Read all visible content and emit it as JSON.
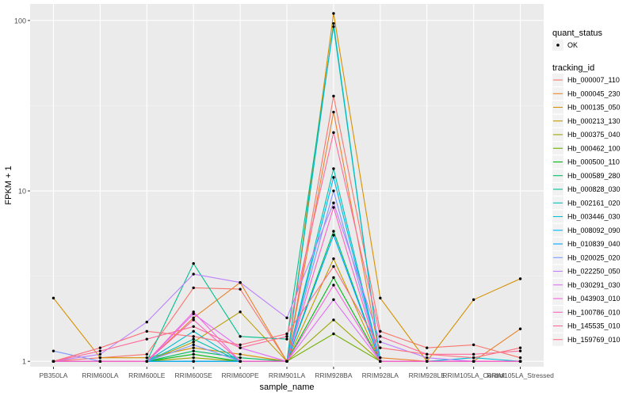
{
  "chart_data": {
    "type": "line",
    "xlabel": "sample_name",
    "ylabel": "FPKM + 1",
    "y_scale": "log10",
    "ylim": [
      0.93,
      125
    ],
    "y_ticks": [
      1,
      10,
      100
    ],
    "y_tick_labels": [
      "1",
      "10",
      "100"
    ],
    "categories": [
      "PB350LA",
      "RRIM600LA",
      "RRIM600LE",
      "RRIM600SE",
      "RRIM600PE",
      "RRIM901LA",
      "RRIM928BA",
      "RRIM928LA",
      "RRIM928LE",
      "RRIM105LA_Control",
      "RRIM105LA_Stressed"
    ],
    "grid": true,
    "background": "#EBEBEB",
    "legend_shape": {
      "title": "quant_status",
      "items": [
        "OK"
      ]
    },
    "legend_color": {
      "title": "tracking_id"
    },
    "series": [
      {
        "name": "Hb_000007_110",
        "color": "#F8766D",
        "values": [
          1.0,
          1.05,
          1.1,
          2.7,
          2.65,
          1.0,
          36,
          1.5,
          1.2,
          1.25,
          1.05
        ]
      },
      {
        "name": "Hb_000045_230",
        "color": "#E9842C",
        "values": [
          1.0,
          1.0,
          1.0,
          1.8,
          2.9,
          1.0,
          29,
          1.05,
          1.0,
          1.0,
          1.55
        ]
      },
      {
        "name": "Hb_000135_050",
        "color": "#D69100",
        "values": [
          2.35,
          1.05,
          1.05,
          1.2,
          1.1,
          1.0,
          110,
          2.35,
          1.0,
          2.3,
          3.05
        ]
      },
      {
        "name": "Hb_000213_130",
        "color": "#BC9D00",
        "values": [
          1.0,
          1.0,
          1.0,
          1.3,
          1.95,
          1.0,
          4.0,
          1.0,
          1.0,
          1.0,
          1.0
        ]
      },
      {
        "name": "Hb_000375_040",
        "color": "#9CA700",
        "values": [
          1.0,
          1.0,
          1.0,
          1.05,
          1.0,
          1.0,
          1.75,
          1.0,
          1.0,
          1.0,
          1.0
        ]
      },
      {
        "name": "Hb_000462_100",
        "color": "#6FB000",
        "values": [
          1.0,
          1.0,
          1.0,
          1.0,
          1.0,
          1.0,
          1.45,
          1.0,
          1.0,
          1.0,
          1.0
        ]
      },
      {
        "name": "Hb_000500_110",
        "color": "#00B813",
        "values": [
          1.0,
          1.0,
          1.0,
          1.1,
          1.0,
          1.0,
          3.1,
          1.0,
          1.0,
          1.0,
          1.0
        ]
      },
      {
        "name": "Hb_000589_280",
        "color": "#00BD61",
        "values": [
          1.0,
          1.0,
          1.0,
          1.15,
          1.05,
          1.0,
          5.8,
          1.0,
          1.0,
          1.0,
          1.0
        ]
      },
      {
        "name": "Hb_000828_030",
        "color": "#00C08E",
        "values": [
          1.0,
          1.0,
          1.0,
          3.75,
          1.4,
          1.35,
          92,
          1.0,
          1.0,
          1.0,
          1.0
        ]
      },
      {
        "name": "Hb_002161_020",
        "color": "#00C0B4",
        "values": [
          1.0,
          1.0,
          1.0,
          1.35,
          1.0,
          1.0,
          13.5,
          1.0,
          1.0,
          1.0,
          1.0
        ]
      },
      {
        "name": "Hb_003446_030",
        "color": "#00BDD4",
        "values": [
          1.0,
          1.0,
          1.0,
          1.5,
          1.0,
          1.0,
          96,
          1.0,
          1.0,
          1.05,
          1.0
        ]
      },
      {
        "name": "Hb_008092_090",
        "color": "#00B5EE",
        "values": [
          1.0,
          1.0,
          1.0,
          1.0,
          1.0,
          1.0,
          12,
          1.0,
          1.0,
          1.0,
          1.0
        ]
      },
      {
        "name": "Hb_010839_040",
        "color": "#00A7FF",
        "values": [
          1.0,
          1.0,
          1.0,
          1.0,
          1.0,
          1.0,
          5.5,
          1.0,
          1.0,
          1.0,
          1.0
        ]
      },
      {
        "name": "Hb_020025_020",
        "color": "#7F96FF",
        "values": [
          1.15,
          1.0,
          1.0,
          1.25,
          1.0,
          1.0,
          10.0,
          1.0,
          1.0,
          1.0,
          1.0
        ]
      },
      {
        "name": "Hb_022250_050",
        "color": "#BC81FF",
        "values": [
          1.0,
          1.1,
          1.7,
          3.25,
          2.9,
          1.8,
          8.5,
          1.3,
          1.05,
          1.0,
          1.0
        ]
      },
      {
        "name": "Hb_030291_030",
        "color": "#E26EF7",
        "values": [
          1.0,
          1.0,
          1.0,
          1.9,
          1.2,
          1.0,
          2.3,
          1.0,
          1.0,
          1.0,
          1.0
        ]
      },
      {
        "name": "Hb_043903_010",
        "color": "#F863DF",
        "values": [
          1.0,
          1.0,
          1.0,
          1.95,
          1.0,
          1.0,
          2.8,
          1.0,
          1.0,
          1.0,
          1.0
        ]
      },
      {
        "name": "Hb_100786_010",
        "color": "#FF62BF",
        "values": [
          1.0,
          1.0,
          1.0,
          1.75,
          1.0,
          1.0,
          8.0,
          1.0,
          1.0,
          1.0,
          1.0
        ]
      },
      {
        "name": "Hb_145535_010",
        "color": "#FF6A9A",
        "values": [
          1.0,
          1.15,
          1.35,
          1.6,
          1.2,
          1.4,
          22,
          1.4,
          1.1,
          1.1,
          1.15
        ]
      },
      {
        "name": "Hb_159769_010",
        "color": "#FC717F",
        "values": [
          1.0,
          1.2,
          1.5,
          1.4,
          1.25,
          1.45,
          3.6,
          1.2,
          1.1,
          1.05,
          1.2
        ]
      }
    ]
  }
}
